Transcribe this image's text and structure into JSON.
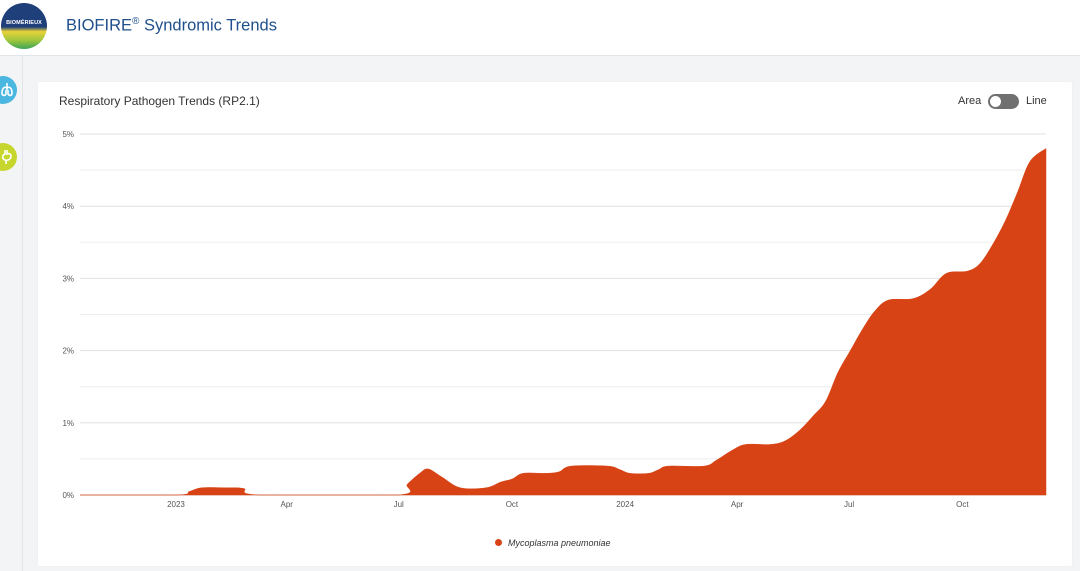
{
  "header": {
    "logo_text": "BIOMÉRIEUX",
    "title": "BIOFIRE",
    "title_sup": "®",
    "title_rest": " Syndromic Trends"
  },
  "sidebar": {
    "items": [
      {
        "icon": "lungs-icon",
        "color": "#4ab7e0"
      },
      {
        "icon": "stomach-icon",
        "color": "#c6d62c"
      }
    ]
  },
  "toggle": {
    "left_label": "Area",
    "right_label": "Line",
    "selected": "Area"
  },
  "chart_data": {
    "type": "area",
    "title": "Respiratory Pathogen Trends (RP2.1)",
    "y_unit": "%",
    "ylim": [
      0,
      5
    ],
    "y_ticks": [
      "0%",
      "1%",
      "2%",
      "3%",
      "4%",
      "5%"
    ],
    "x_ticks": [
      {
        "label": "2023",
        "date": "2023-01-01"
      },
      {
        "label": "Apr",
        "date": "2023-04-01"
      },
      {
        "label": "Jul",
        "date": "2023-07-01"
      },
      {
        "label": "Oct",
        "date": "2023-10-01"
      },
      {
        "label": "2024",
        "date": "2024-01-01"
      },
      {
        "label": "Apr",
        "date": "2024-04-01"
      },
      {
        "label": "Jul",
        "date": "2024-07-01"
      },
      {
        "label": "Oct",
        "date": "2024-10-01"
      }
    ],
    "grid": true,
    "legend_position": "bottom-center",
    "series": [
      {
        "name": "Mycoplasma pneumoniae",
        "color": "#d84315",
        "points": [
          [
            "2022-10-15",
            0
          ],
          [
            "2023-01-01",
            0
          ],
          [
            "2023-01-12",
            0.05
          ],
          [
            "2023-01-22",
            0.1
          ],
          [
            "2023-02-10",
            0.1
          ],
          [
            "2023-02-25",
            0.09
          ],
          [
            "2023-03-10",
            0
          ],
          [
            "2023-06-30",
            0
          ],
          [
            "2023-07-08",
            0.15
          ],
          [
            "2023-07-18",
            0.3
          ],
          [
            "2023-07-25",
            0.36
          ],
          [
            "2023-08-05",
            0.25
          ],
          [
            "2023-08-20",
            0.1
          ],
          [
            "2023-09-10",
            0.1
          ],
          [
            "2023-09-22",
            0.18
          ],
          [
            "2023-10-01",
            0.22
          ],
          [
            "2023-10-10",
            0.3
          ],
          [
            "2023-10-28",
            0.3
          ],
          [
            "2023-11-08",
            0.32
          ],
          [
            "2023-11-18",
            0.4
          ],
          [
            "2023-12-18",
            0.4
          ],
          [
            "2023-12-28",
            0.35
          ],
          [
            "2024-01-05",
            0.3
          ],
          [
            "2024-01-20",
            0.3
          ],
          [
            "2024-01-28",
            0.35
          ],
          [
            "2024-02-05",
            0.4
          ],
          [
            "2024-03-05",
            0.4
          ],
          [
            "2024-03-15",
            0.48
          ],
          [
            "2024-03-28",
            0.62
          ],
          [
            "2024-04-08",
            0.7
          ],
          [
            "2024-04-28",
            0.7
          ],
          [
            "2024-05-10",
            0.75
          ],
          [
            "2024-05-22",
            0.9
          ],
          [
            "2024-06-02",
            1.1
          ],
          [
            "2024-06-12",
            1.3
          ],
          [
            "2024-06-22",
            1.7
          ],
          [
            "2024-07-02",
            2.0
          ],
          [
            "2024-07-12",
            2.3
          ],
          [
            "2024-07-22",
            2.55
          ],
          [
            "2024-08-02",
            2.7
          ],
          [
            "2024-08-22",
            2.72
          ],
          [
            "2024-09-05",
            2.85
          ],
          [
            "2024-09-18",
            3.07
          ],
          [
            "2024-10-05",
            3.1
          ],
          [
            "2024-10-15",
            3.2
          ],
          [
            "2024-10-25",
            3.45
          ],
          [
            "2024-11-05",
            3.8
          ],
          [
            "2024-11-15",
            4.2
          ],
          [
            "2024-11-25",
            4.62
          ],
          [
            "2024-12-08",
            4.8
          ]
        ]
      }
    ]
  }
}
